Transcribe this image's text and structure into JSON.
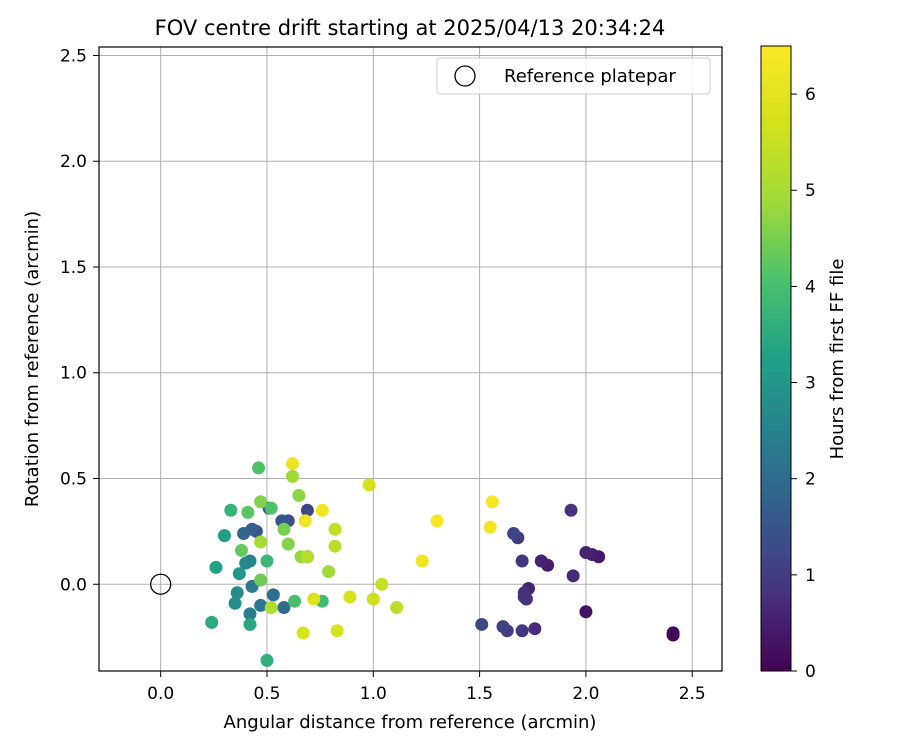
{
  "chart_data": {
    "type": "scatter",
    "title": "FOV centre drift starting at 2025/04/13 20:34:24",
    "xlabel": "Angular distance from reference (arcmin)",
    "ylabel": "Rotation from reference (arcmin)",
    "xlim": [
      -0.29,
      2.64
    ],
    "ylim": [
      -0.41,
      2.54
    ],
    "xticks": [
      0.0,
      0.5,
      1.0,
      1.5,
      2.0,
      2.5
    ],
    "xtick_labels": [
      "0.0",
      "0.5",
      "1.0",
      "1.5",
      "2.0",
      "2.5"
    ],
    "yticks": [
      0.0,
      0.5,
      1.0,
      1.5,
      2.0,
      2.5
    ],
    "ytick_labels": [
      "0.0",
      "0.5",
      "1.0",
      "1.5",
      "2.0",
      "2.5"
    ],
    "grid": true,
    "legend": {
      "position": "top-right",
      "label": "Reference platepar"
    },
    "reference_point": {
      "x": 0.0,
      "y": 0.0
    },
    "colorbar": {
      "label": "Hours from first FF file",
      "colormap": "viridis",
      "range": [
        0,
        6.5
      ],
      "ticks": [
        0,
        1,
        2,
        3,
        4,
        5,
        6
      ],
      "tick_labels": [
        "0",
        "1",
        "2",
        "3",
        "4",
        "5",
        "6"
      ]
    },
    "points": [
      {
        "x": 2.41,
        "y": -0.24,
        "h": 0.05
      },
      {
        "x": 2.41,
        "y": -0.23,
        "h": 0.1
      },
      {
        "x": 2.0,
        "y": -0.13,
        "h": 0.3
      },
      {
        "x": 2.06,
        "y": 0.13,
        "h": 0.4
      },
      {
        "x": 2.03,
        "y": 0.14,
        "h": 0.5
      },
      {
        "x": 2.0,
        "y": 0.15,
        "h": 0.6
      },
      {
        "x": 1.94,
        "y": 0.04,
        "h": 0.7
      },
      {
        "x": 1.93,
        "y": 0.35,
        "h": 0.8
      },
      {
        "x": 1.82,
        "y": 0.09,
        "h": 0.5
      },
      {
        "x": 1.79,
        "y": 0.11,
        "h": 0.6
      },
      {
        "x": 1.76,
        "y": -0.21,
        "h": 0.7
      },
      {
        "x": 1.73,
        "y": -0.02,
        "h": 0.6
      },
      {
        "x": 1.71,
        "y": -0.06,
        "h": 0.7
      },
      {
        "x": 1.71,
        "y": -0.04,
        "h": 0.8
      },
      {
        "x": 1.72,
        "y": -0.07,
        "h": 0.8
      },
      {
        "x": 1.7,
        "y": 0.11,
        "h": 0.9
      },
      {
        "x": 1.7,
        "y": -0.22,
        "h": 0.9
      },
      {
        "x": 1.68,
        "y": 0.22,
        "h": 1.0
      },
      {
        "x": 1.66,
        "y": 0.24,
        "h": 1.2
      },
      {
        "x": 1.63,
        "y": -0.22,
        "h": 1.0
      },
      {
        "x": 1.61,
        "y": -0.2,
        "h": 1.1
      },
      {
        "x": 1.51,
        "y": -0.19,
        "h": 1.3
      },
      {
        "x": 0.69,
        "y": 0.35,
        "h": 1.2
      },
      {
        "x": 0.69,
        "y": 0.13,
        "h": 1.1
      },
      {
        "x": 0.6,
        "y": 0.3,
        "h": 1.4
      },
      {
        "x": 0.57,
        "y": 0.3,
        "h": 1.5
      },
      {
        "x": 0.51,
        "y": 0.36,
        "h": 1.6
      },
      {
        "x": 0.45,
        "y": 0.25,
        "h": 1.5
      },
      {
        "x": 0.43,
        "y": 0.26,
        "h": 1.7
      },
      {
        "x": 0.39,
        "y": 0.24,
        "h": 1.8
      },
      {
        "x": 0.58,
        "y": -0.11,
        "h": 2.0
      },
      {
        "x": 0.53,
        "y": -0.05,
        "h": 2.1
      },
      {
        "x": 0.47,
        "y": -0.1,
        "h": 2.2
      },
      {
        "x": 0.43,
        "y": -0.01,
        "h": 2.3
      },
      {
        "x": 0.42,
        "y": -0.14,
        "h": 2.4
      },
      {
        "x": 0.42,
        "y": 0.11,
        "h": 2.5
      },
      {
        "x": 0.4,
        "y": 0.1,
        "h": 2.6
      },
      {
        "x": 0.36,
        "y": -0.04,
        "h": 2.7
      },
      {
        "x": 0.35,
        "y": -0.09,
        "h": 2.8
      },
      {
        "x": 0.37,
        "y": 0.05,
        "h": 3.0
      },
      {
        "x": 0.3,
        "y": 0.23,
        "h": 3.2
      },
      {
        "x": 0.26,
        "y": 0.08,
        "h": 3.3
      },
      {
        "x": 0.42,
        "y": -0.19,
        "h": 3.4
      },
      {
        "x": 0.24,
        "y": -0.18,
        "h": 3.5
      },
      {
        "x": 0.5,
        "y": -0.36,
        "h": 3.6
      },
      {
        "x": 0.33,
        "y": 0.35,
        "h": 3.7
      },
      {
        "x": 0.5,
        "y": 0.11,
        "h": 3.8
      },
      {
        "x": 0.76,
        "y": -0.08,
        "h": 3.9
      },
      {
        "x": 0.63,
        "y": -0.08,
        "h": 4.0
      },
      {
        "x": 0.46,
        "y": 0.55,
        "h": 4.1
      },
      {
        "x": 0.41,
        "y": 0.34,
        "h": 4.2
      },
      {
        "x": 0.52,
        "y": 0.36,
        "h": 4.1
      },
      {
        "x": 0.38,
        "y": 0.16,
        "h": 4.3
      },
      {
        "x": 0.47,
        "y": 0.02,
        "h": 4.4
      },
      {
        "x": 0.58,
        "y": 0.26,
        "h": 4.5
      },
      {
        "x": 0.6,
        "y": 0.19,
        "h": 4.6
      },
      {
        "x": 0.47,
        "y": 0.39,
        "h": 4.6
      },
      {
        "x": 0.65,
        "y": 0.42,
        "h": 4.7
      },
      {
        "x": 0.62,
        "y": 0.51,
        "h": 4.9
      },
      {
        "x": 0.66,
        "y": 0.13,
        "h": 4.8
      },
      {
        "x": 0.79,
        "y": 0.06,
        "h": 4.9
      },
      {
        "x": 0.47,
        "y": 0.2,
        "h": 5.0
      },
      {
        "x": 0.52,
        "y": -0.11,
        "h": 5.1
      },
      {
        "x": 0.69,
        "y": 0.13,
        "h": 5.2
      },
      {
        "x": 0.82,
        "y": 0.18,
        "h": 5.3
      },
      {
        "x": 0.82,
        "y": 0.26,
        "h": 5.4
      },
      {
        "x": 1.11,
        "y": -0.11,
        "h": 5.3
      },
      {
        "x": 1.04,
        "y": 0.0,
        "h": 5.5
      },
      {
        "x": 1.0,
        "y": -0.07,
        "h": 5.6
      },
      {
        "x": 0.89,
        "y": -0.06,
        "h": 5.7
      },
      {
        "x": 0.83,
        "y": -0.22,
        "h": 5.8
      },
      {
        "x": 0.72,
        "y": -0.07,
        "h": 5.9
      },
      {
        "x": 0.67,
        "y": -0.23,
        "h": 5.8
      },
      {
        "x": 0.98,
        "y": 0.47,
        "h": 5.7
      },
      {
        "x": 0.68,
        "y": 0.3,
        "h": 6.2
      },
      {
        "x": 0.76,
        "y": 0.35,
        "h": 6.3
      },
      {
        "x": 0.62,
        "y": 0.57,
        "h": 6.2
      },
      {
        "x": 1.23,
        "y": 0.11,
        "h": 6.3
      },
      {
        "x": 1.3,
        "y": 0.3,
        "h": 6.4
      },
      {
        "x": 1.55,
        "y": 0.27,
        "h": 6.3
      },
      {
        "x": 1.56,
        "y": 0.39,
        "h": 6.4
      }
    ]
  }
}
